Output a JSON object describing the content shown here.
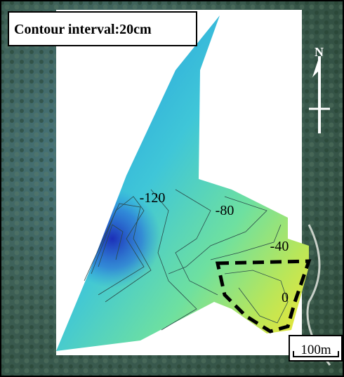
{
  "title": "Contour interval:20cm",
  "contour_labels": [
    "-120",
    "-80",
    "-40",
    "0"
  ],
  "north": "N",
  "scale": "100m"
}
